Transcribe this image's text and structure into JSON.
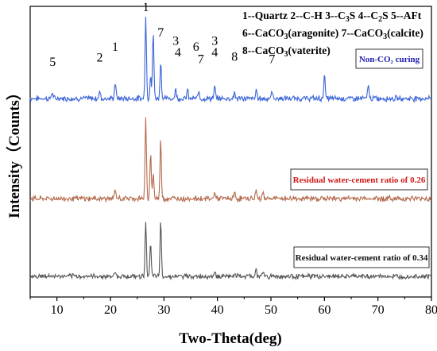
{
  "chart_data": {
    "type": "line",
    "xlabel": "Two-Theta(deg)",
    "ylabel": "Intensity（Counts）",
    "xlim": [
      5,
      80
    ],
    "x_ticks": [
      "10",
      "20",
      "30",
      "40",
      "50",
      "60",
      "70",
      "80"
    ],
    "grid": false,
    "y_ticks_shown": false,
    "legend_lines": [
      [
        {
          "t": "1--Quartz  2--C-H  3--C"
        },
        {
          "t": "3",
          "sub": true
        },
        {
          "t": "S  4--C"
        },
        {
          "t": "2",
          "sub": true
        },
        {
          "t": "S  5--AFt"
        }
      ],
      [
        {
          "t": "6--CaCO"
        },
        {
          "t": "3",
          "sub": true
        },
        {
          "t": "(aragonite)  7--CaCO"
        },
        {
          "t": "3",
          "sub": true
        },
        {
          "t": "(calcite)"
        }
      ],
      [
        {
          "t": "8--CaCO"
        },
        {
          "t": "3",
          "sub": true
        },
        {
          "t": "(vaterite)"
        }
      ]
    ],
    "peak_labels": [
      {
        "label": "1",
        "x": 26.6,
        "level": 1.0
      },
      {
        "label": "7",
        "x": 29.4,
        "level": 0.7
      },
      {
        "label": "3",
        "x": 32.2,
        "level": 0.6
      },
      {
        "label": "4",
        "x": 32.6,
        "level": 0.46
      },
      {
        "label": "3",
        "x": 39.5,
        "level": 0.6
      },
      {
        "label": "4",
        "x": 39.5,
        "level": 0.46
      },
      {
        "label": "6",
        "x": 36.0,
        "level": 0.53
      },
      {
        "label": "7",
        "x": 36.9,
        "level": 0.38
      },
      {
        "label": "8",
        "x": 43.2,
        "level": 0.41
      },
      {
        "label": "7",
        "x": 50.2,
        "level": 0.38
      },
      {
        "label": "1",
        "x": 20.9,
        "level": 0.53
      },
      {
        "label": "2",
        "x": 18.0,
        "level": 0.4
      },
      {
        "label": "5",
        "x": 9.2,
        "level": 0.35
      }
    ],
    "series": [
      {
        "name": "Non-CO₂ curing",
        "color": "#3a64d8",
        "label_color": "#1f1fb0",
        "baseline": 0.0,
        "peaks": [
          {
            "x": 9.1,
            "h": 0.08
          },
          {
            "x": 18.0,
            "h": 0.09
          },
          {
            "x": 20.9,
            "h": 0.2
          },
          {
            "x": 26.6,
            "h": 1.0
          },
          {
            "x": 27.5,
            "h": 0.28
          },
          {
            "x": 28.0,
            "h": 0.8
          },
          {
            "x": 29.4,
            "h": 0.45
          },
          {
            "x": 32.2,
            "h": 0.12
          },
          {
            "x": 34.4,
            "h": 0.1
          },
          {
            "x": 36.5,
            "h": 0.08
          },
          {
            "x": 39.5,
            "h": 0.14
          },
          {
            "x": 43.2,
            "h": 0.07
          },
          {
            "x": 47.3,
            "h": 0.1
          },
          {
            "x": 50.2,
            "h": 0.08
          },
          {
            "x": 60.0,
            "h": 0.29
          },
          {
            "x": 68.2,
            "h": 0.17
          }
        ]
      },
      {
        "name": "Residual water-cement ratio of 0.26",
        "color": "#b56a4c",
        "label_color": "#d01818",
        "baseline": 0.0,
        "peaks": [
          {
            "x": 20.9,
            "h": 0.1
          },
          {
            "x": 26.6,
            "h": 0.95
          },
          {
            "x": 27.5,
            "h": 0.56
          },
          {
            "x": 28.0,
            "h": 0.32
          },
          {
            "x": 29.4,
            "h": 0.72
          },
          {
            "x": 39.5,
            "h": 0.08
          },
          {
            "x": 43.2,
            "h": 0.06
          },
          {
            "x": 47.2,
            "h": 0.1
          },
          {
            "x": 48.5,
            "h": 0.08
          }
        ]
      },
      {
        "name": "Residual water-cement ratio of 0.34",
        "color": "#555555",
        "label_color": "#111111",
        "baseline": 0.0,
        "peaks": [
          {
            "x": 20.9,
            "h": 0.08
          },
          {
            "x": 26.6,
            "h": 0.78
          },
          {
            "x": 27.5,
            "h": 0.45
          },
          {
            "x": 29.4,
            "h": 0.78
          },
          {
            "x": 39.5,
            "h": 0.07
          },
          {
            "x": 43.2,
            "h": 0.05
          },
          {
            "x": 47.2,
            "h": 0.1
          },
          {
            "x": 48.5,
            "h": 0.07
          }
        ]
      }
    ]
  }
}
